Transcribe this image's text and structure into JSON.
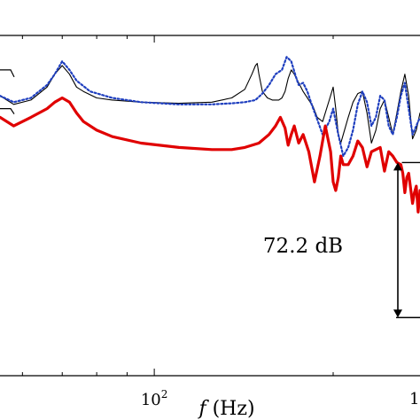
{
  "chart_data": {
    "type": "line",
    "title": "",
    "xlabel_italic": "f",
    "xlabel_unit": " (Hz)",
    "ylabel": "",
    "xscale": "log",
    "xlim": [
      55,
      280
    ],
    "ylim": [
      -142,
      16
    ],
    "grid": false,
    "x_tick_labels": [
      {
        "x": 100,
        "base": "10",
        "exp": "2"
      }
    ],
    "annotations": [
      {
        "text": "72.2 dB",
        "x_from": 261,
        "y_top": -43,
        "y_bottom": -115
      }
    ],
    "series": [
      {
        "color": "#000000",
        "style": "solid-thin",
        "x": [
          55,
          58,
          62,
          66,
          68,
          70,
          72,
          74,
          76,
          80,
          85,
          95,
          110,
          125,
          135,
          142,
          146,
          148,
          149,
          150,
          152,
          155,
          158,
          162,
          164,
          166,
          168,
          170,
          172,
          175,
          178,
          180,
          182,
          185,
          188,
          192,
          197,
          200,
          202,
          204,
          206,
          208,
          212,
          216,
          220,
          224,
          228,
          232,
          236,
          240,
          244,
          248,
          252,
          256,
          260,
          264,
          268,
          272,
          276,
          280
        ],
        "y": [
          -12,
          -16,
          -14,
          -8,
          -2,
          2,
          -2,
          -8,
          -10,
          -13,
          -14,
          -15,
          -15.5,
          -15,
          -13,
          -9,
          -2,
          2,
          3,
          -2,
          -10,
          -13,
          -14,
          -14,
          -13,
          -10,
          -4,
          0,
          -2,
          -6,
          -10,
          -12,
          -14,
          -17,
          -22,
          -24,
          -14,
          -8,
          -18,
          -30,
          -34,
          -30,
          -22,
          -15,
          -11,
          -10,
          -20,
          -34,
          -28,
          -18,
          -14,
          -22,
          -30,
          -20,
          -10,
          -2,
          -12,
          -32,
          -28,
          -20
        ]
      },
      {
        "color": "#1f3fbf",
        "style": "dotted",
        "x": [
          55,
          58,
          62,
          66,
          68,
          70,
          72,
          74,
          78,
          85,
          95,
          110,
          125,
          135,
          142,
          148,
          152,
          156,
          160,
          164,
          167,
          170,
          173,
          175,
          178,
          181,
          184,
          188,
          192,
          197,
          200,
          204,
          208,
          212,
          216,
          220,
          224,
          228,
          232,
          236,
          240,
          244,
          248,
          252,
          256,
          260,
          264,
          268,
          272,
          276,
          280
        ],
        "y": [
          -12,
          -15,
          -13,
          -7,
          -2,
          4,
          0,
          -5,
          -10,
          -13,
          -15,
          -16,
          -16,
          -15.5,
          -15,
          -14,
          -11,
          -7,
          -2,
          0,
          6,
          4,
          -3,
          -7,
          -6,
          -10,
          -16,
          -23,
          -30,
          -24,
          -18,
          -30,
          -40,
          -36,
          -28,
          -16,
          -10,
          -15,
          -26,
          -22,
          -12,
          -14,
          -26,
          -30,
          -22,
          -12,
          -6,
          -18,
          -30,
          -26,
          -22
        ]
      },
      {
        "color": "#e00000",
        "style": "solid-thick",
        "x": [
          55,
          58,
          62,
          66,
          68,
          70,
          72,
          74,
          76,
          80,
          85,
          95,
          110,
          125,
          135,
          142,
          150,
          156,
          160,
          163,
          166,
          168,
          170,
          172,
          175,
          178,
          182,
          186,
          190,
          194,
          196,
          198,
          200,
          202,
          204,
          206,
          208,
          212,
          216,
          220,
          224,
          228,
          232,
          236,
          240,
          244,
          248,
          252,
          256,
          260,
          262,
          264,
          266,
          268,
          270,
          272,
          274,
          276,
          278,
          280
        ],
        "y": [
          -22,
          -26,
          -22,
          -18,
          -15,
          -13,
          -15,
          -20,
          -24,
          -28,
          -31,
          -34,
          -36,
          -37,
          -37,
          -36,
          -34,
          -30,
          -26,
          -22,
          -27,
          -35,
          -30,
          -26,
          -34,
          -30,
          -38,
          -52,
          -40,
          -26,
          -32,
          -38,
          -52,
          -56,
          -50,
          -40,
          -44,
          -44,
          -40,
          -33,
          -36,
          -45,
          -38,
          -37,
          -36,
          -47,
          -38,
          -40,
          -43,
          -44,
          -48,
          -57,
          -50,
          -48,
          -55,
          -62,
          -57,
          -54,
          -66,
          -56
        ]
      }
    ]
  }
}
